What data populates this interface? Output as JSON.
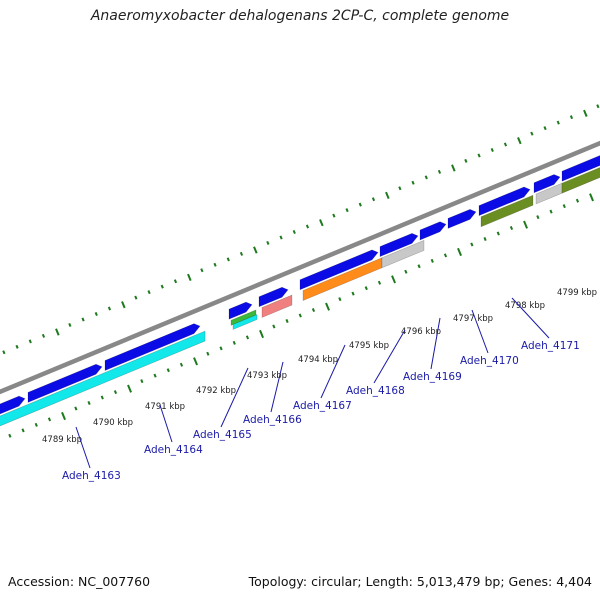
{
  "title": "Anaeromyxobacter dehalogenans 2CP-C, complete genome",
  "footer": {
    "accession": "Accession: NC_007760",
    "topology": "Topology: circular; Length: 5,013,479 bp; Genes: 4,404"
  },
  "colors": {
    "gene_forward": "#0b0be6",
    "backbone": "#888888",
    "tick": "#1e7a1e",
    "label": "#1a1aa8",
    "cyan": "#12e8ea",
    "green": "#3ab83a",
    "pink": "#f08080",
    "orange": "#ff8c1a",
    "gray": "#c8c8c8",
    "olive": "#6b8e23"
  },
  "kbp_labels": [
    "4789 kbp",
    "4790 kbp",
    "4791 kbp",
    "4792 kbp",
    "4793 kbp",
    "4794 kbp",
    "4795 kbp",
    "4796 kbp",
    "4797 kbp",
    "4798 kbp",
    "4799 kbp"
  ],
  "genes": [
    "Adeh_4163",
    "Adeh_4164",
    "Adeh_4165",
    "Adeh_4166",
    "Adeh_4167",
    "Adeh_4168",
    "Adeh_4169",
    "Adeh_4170",
    "Adeh_4171"
  ]
}
